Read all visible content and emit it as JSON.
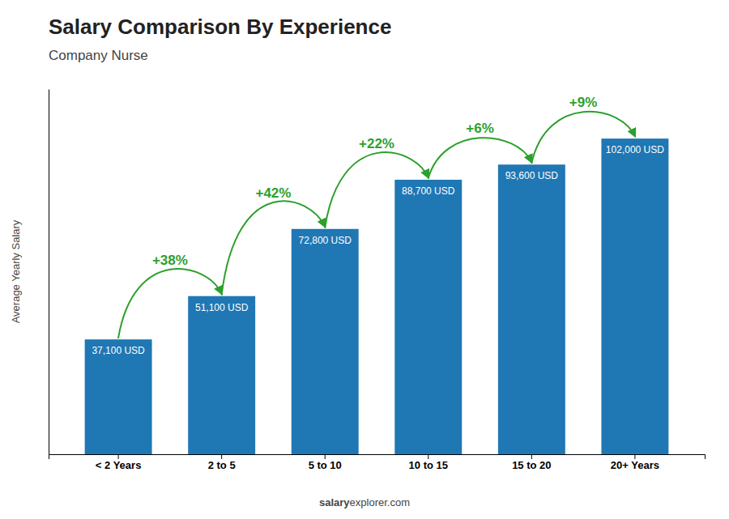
{
  "chart_data": {
    "type": "bar",
    "title": "Salary Comparison By Experience",
    "subtitle": "Company Nurse",
    "categories": [
      "< 2 Years",
      "2 to 5",
      "5 to 10",
      "10 to 15",
      "15 to 20",
      "20+ Years"
    ],
    "values": [
      37100,
      51100,
      72800,
      88700,
      93600,
      102000
    ],
    "value_labels": [
      "37,100 USD",
      "51,100 USD",
      "72,800 USD",
      "88,700 USD",
      "93,600 USD",
      "102,000 USD"
    ],
    "data_labels": true,
    "y_label": "Average Yearly Salary",
    "ylim": [
      0,
      118000
    ],
    "tick_labels": "x",
    "grid": false,
    "annotations": [
      "+38%",
      "+42%",
      "+22%",
      "+6%",
      "+9%"
    ],
    "footer": [
      "salary",
      "explorer.com"
    ]
  }
}
